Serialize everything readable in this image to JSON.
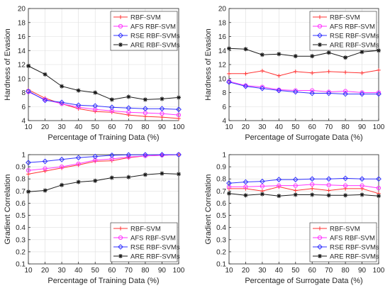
{
  "chart_data": [
    {
      "type": "line",
      "xlabel": "Percentage of Training Data (%)",
      "ylabel": "Hardness of Evasion",
      "x": [
        10,
        20,
        30,
        40,
        50,
        60,
        70,
        80,
        90,
        100
      ],
      "xlim": [
        10,
        100
      ],
      "ylim": [
        4,
        20
      ],
      "yticks": [
        4,
        6,
        8,
        10,
        12,
        14,
        16,
        18,
        20
      ],
      "legend": "top-right",
      "grid": true,
      "series": [
        {
          "name": "RBF-SVM",
          "color": "#ff3333",
          "marker": "plus",
          "values": [
            8.4,
            7.2,
            6.4,
            5.7,
            5.3,
            5.2,
            4.8,
            4.6,
            4.5,
            4.3
          ]
        },
        {
          "name": "AFS RBF-SVM",
          "color": "#ff33ff",
          "marker": "circle",
          "values": [
            8.1,
            7.0,
            6.4,
            5.9,
            5.6,
            5.4,
            5.2,
            5.1,
            5.0,
            4.8
          ]
        },
        {
          "name": "RSE RBF-SVMs",
          "color": "#3333ff",
          "marker": "diamond",
          "values": [
            8.2,
            6.9,
            6.6,
            6.2,
            6.1,
            5.9,
            5.8,
            5.7,
            5.7,
            5.6
          ]
        },
        {
          "name": "ARE RBF-SVMs",
          "color": "#1a1a1a",
          "marker": "star",
          "values": [
            11.8,
            10.6,
            8.9,
            8.3,
            8.0,
            7.0,
            7.4,
            7.0,
            7.1,
            7.3
          ]
        }
      ]
    },
    {
      "type": "line",
      "xlabel": "Percentage of Surrogate Data (%)",
      "ylabel": "Hardness of Evasion",
      "x": [
        10,
        20,
        30,
        40,
        50,
        60,
        70,
        80,
        90,
        100
      ],
      "xlim": [
        10,
        100
      ],
      "ylim": [
        4,
        20
      ],
      "yticks": [
        4,
        6,
        8,
        10,
        12,
        14,
        16,
        18,
        20
      ],
      "legend": "top-right",
      "grid": true,
      "series": [
        {
          "name": "RBF-SVM",
          "color": "#ff3333",
          "marker": "plus",
          "values": [
            10.7,
            10.7,
            11.1,
            10.4,
            11.0,
            10.8,
            11.0,
            10.9,
            10.8,
            11.2
          ]
        },
        {
          "name": "AFS RBF-SVM",
          "color": "#ff33ff",
          "marker": "circle",
          "values": [
            9.6,
            9.0,
            8.8,
            8.4,
            8.3,
            8.3,
            8.1,
            8.2,
            8.0,
            8.0
          ]
        },
        {
          "name": "RSE RBF-SVMs",
          "color": "#3333ff",
          "marker": "diamond",
          "values": [
            9.5,
            8.9,
            8.6,
            8.3,
            8.1,
            7.9,
            7.9,
            7.8,
            7.8,
            7.8
          ]
        },
        {
          "name": "ARE RBF-SVMs",
          "color": "#1a1a1a",
          "marker": "star",
          "values": [
            14.3,
            14.2,
            13.4,
            13.5,
            13.2,
            13.2,
            13.7,
            13.0,
            13.8,
            14.0
          ]
        }
      ]
    },
    {
      "type": "line",
      "xlabel": "Percentage of Training Data (%)",
      "ylabel": "Gradient Correlation",
      "x": [
        10,
        20,
        30,
        40,
        50,
        60,
        70,
        80,
        90,
        100
      ],
      "xlim": [
        10,
        100
      ],
      "ylim": [
        0.1,
        1.0
      ],
      "yticks": [
        0.1,
        0.2,
        0.3,
        0.4,
        0.5,
        0.6,
        0.7,
        0.8,
        0.9,
        1
      ],
      "legend": "bottom-right",
      "grid": true,
      "series": [
        {
          "name": "RBF-SVM",
          "color": "#ff3333",
          "marker": "plus",
          "values": [
            0.84,
            0.865,
            0.89,
            0.915,
            0.945,
            0.95,
            0.975,
            0.99,
            0.995,
            1.0
          ]
        },
        {
          "name": "AFS RBF-SVM",
          "color": "#ff33ff",
          "marker": "circle",
          "values": [
            0.87,
            0.885,
            0.9,
            0.925,
            0.955,
            0.965,
            0.98,
            0.99,
            0.995,
            1.0
          ]
        },
        {
          "name": "RSE RBF-SVMs",
          "color": "#3333ff",
          "marker": "diamond",
          "values": [
            0.935,
            0.945,
            0.96,
            0.975,
            0.985,
            0.995,
            0.998,
            0.999,
            1.0,
            1.0
          ]
        },
        {
          "name": "ARE RBF-SVMs",
          "color": "#1a1a1a",
          "marker": "star",
          "values": [
            0.695,
            0.705,
            0.75,
            0.775,
            0.785,
            0.81,
            0.815,
            0.835,
            0.845,
            0.84
          ]
        }
      ]
    },
    {
      "type": "line",
      "xlabel": "Percentage of Surrogate Data (%)",
      "ylabel": "Gradient Correlation",
      "x": [
        10,
        20,
        30,
        40,
        50,
        60,
        70,
        80,
        90,
        100
      ],
      "xlim": [
        10,
        100
      ],
      "ylim": [
        0.1,
        1.0
      ],
      "yticks": [
        0.1,
        0.2,
        0.3,
        0.4,
        0.5,
        0.6,
        0.7,
        0.8,
        0.9,
        1
      ],
      "legend": "bottom-right",
      "grid": true,
      "series": [
        {
          "name": "RBF-SVM",
          "color": "#ff3333",
          "marker": "plus",
          "values": [
            0.72,
            0.72,
            0.7,
            0.735,
            0.705,
            0.72,
            0.705,
            0.72,
            0.72,
            0.68
          ]
        },
        {
          "name": "AFS RBF-SVM",
          "color": "#ff33ff",
          "marker": "circle",
          "values": [
            0.735,
            0.735,
            0.74,
            0.745,
            0.745,
            0.755,
            0.75,
            0.745,
            0.745,
            0.725
          ]
        },
        {
          "name": "RSE RBF-SVMs",
          "color": "#3333ff",
          "marker": "diamond",
          "values": [
            0.765,
            0.775,
            0.78,
            0.795,
            0.795,
            0.8,
            0.8,
            0.805,
            0.8,
            0.8
          ]
        },
        {
          "name": "ARE RBF-SVMs",
          "color": "#1a1a1a",
          "marker": "star",
          "values": [
            0.68,
            0.665,
            0.675,
            0.66,
            0.67,
            0.67,
            0.665,
            0.665,
            0.67,
            0.66
          ]
        }
      ]
    }
  ]
}
